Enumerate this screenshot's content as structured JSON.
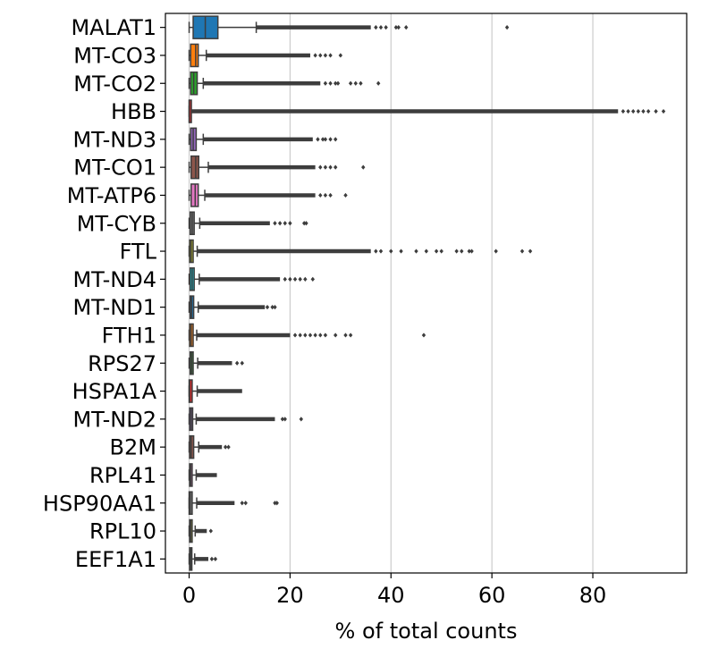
{
  "chart_data": {
    "type": "boxplot",
    "orientation": "horizontal",
    "title": "",
    "xlabel": "% of total counts",
    "ylabel": "",
    "xlim": [
      -4.7,
      98.6
    ],
    "xticks": [
      0,
      20,
      40,
      60,
      80
    ],
    "grid": "vertical",
    "colors": {
      "palette": [
        "#1f77b4",
        "#ff7f0e",
        "#2ca02c",
        "#d62728",
        "#9467bd",
        "#8c564b",
        "#e377c2",
        "#7f7f7f",
        "#bcbd22",
        "#17becf"
      ],
      "line": "#3d3d3d",
      "grid": "#cccccc"
    },
    "categories": [
      "MALAT1",
      "MT-CO3",
      "MT-CO2",
      "HBB",
      "MT-ND3",
      "MT-CO1",
      "MT-ATP6",
      "MT-CYB",
      "FTL",
      "MT-ND4",
      "MT-ND1",
      "FTH1",
      "RPS27",
      "HSPA1A",
      "MT-ND2",
      "B2M",
      "RPL41",
      "HSP90AA1",
      "RPL10",
      "EEF1A1"
    ],
    "boxes": [
      {
        "name": "MALAT1",
        "q1": 0.8,
        "median": 3.2,
        "q3": 5.7,
        "whisker_low": 0.0,
        "whisker_high": 13.3,
        "outlier_dense_to": 36.0,
        "outliers": [
          37,
          38,
          39,
          41,
          41.5,
          43,
          63
        ]
      },
      {
        "name": "MT-CO3",
        "q1": 0.3,
        "median": 1.3,
        "q3": 1.8,
        "whisker_low": 0.0,
        "whisker_high": 3.4,
        "outlier_dense_to": 24.0,
        "outliers": [
          25,
          26,
          27,
          28,
          30
        ]
      },
      {
        "name": "MT-CO2",
        "q1": 0.3,
        "median": 0.9,
        "q3": 1.6,
        "whisker_low": 0.0,
        "whisker_high": 2.8,
        "outlier_dense_to": 26.0,
        "outliers": [
          27,
          28,
          29,
          29.5,
          32,
          33,
          34,
          37.5
        ]
      },
      {
        "name": "HBB",
        "q1": 0.0,
        "median": 0.02,
        "q3": 0.05,
        "whisker_low": 0.0,
        "whisker_high": 0.1,
        "outlier_dense_to": 85.0,
        "outliers": [
          86,
          87,
          88,
          89,
          90,
          91,
          92.5,
          94
        ]
      },
      {
        "name": "MT-ND3",
        "q1": 0.3,
        "median": 0.8,
        "q3": 1.4,
        "whisker_low": 0.0,
        "whisker_high": 2.8,
        "outlier_dense_to": 24.5,
        "outliers": [
          25.5,
          26.5,
          27,
          28,
          29
        ]
      },
      {
        "name": "MT-CO1",
        "q1": 0.4,
        "median": 1.3,
        "q3": 1.9,
        "whisker_low": 0.0,
        "whisker_high": 3.8,
        "outlier_dense_to": 25.0,
        "outliers": [
          26,
          27,
          28,
          29,
          34.5
        ]
      },
      {
        "name": "MT-ATP6",
        "q1": 0.4,
        "median": 1.2,
        "q3": 1.8,
        "whisker_low": 0.0,
        "whisker_high": 3.1,
        "outlier_dense_to": 25.0,
        "outliers": [
          26,
          27,
          28,
          31
        ]
      },
      {
        "name": "MT-CYB",
        "q1": 0.2,
        "median": 0.6,
        "q3": 1.0,
        "whisker_low": 0.0,
        "whisker_high": 2.1,
        "outlier_dense_to": 16.0,
        "outliers": [
          17,
          18,
          19,
          20,
          22.8,
          23.2
        ]
      },
      {
        "name": "FTL",
        "q1": 0.1,
        "median": 0.4,
        "q3": 0.8,
        "whisker_low": 0.0,
        "whisker_high": 1.6,
        "outlier_dense_to": 36.0,
        "outliers": [
          37,
          38,
          40,
          42,
          45,
          47,
          49,
          50,
          53,
          54,
          55.5,
          56,
          60.8,
          66,
          67.6
        ]
      },
      {
        "name": "MT-ND4",
        "q1": 0.2,
        "median": 0.6,
        "q3": 1.0,
        "whisker_low": 0.0,
        "whisker_high": 2.0,
        "outlier_dense_to": 18.0,
        "outliers": [
          19,
          20,
          21,
          22,
          23,
          24.5
        ]
      },
      {
        "name": "MT-ND1",
        "q1": 0.2,
        "median": 0.5,
        "q3": 0.9,
        "whisker_low": 0.0,
        "whisker_high": 1.8,
        "outlier_dense_to": 15.0,
        "outliers": [
          15.5,
          16.5,
          17.0
        ]
      },
      {
        "name": "FTH1",
        "q1": 0.1,
        "median": 0.4,
        "q3": 0.8,
        "whisker_low": 0.0,
        "whisker_high": 1.5,
        "outlier_dense_to": 20.0,
        "outliers": [
          21,
          22,
          23,
          24,
          25,
          26,
          27,
          29,
          31,
          32,
          46.5
        ]
      },
      {
        "name": "RPS27",
        "q1": 0.2,
        "median": 0.5,
        "q3": 0.8,
        "whisker_low": 0.0,
        "whisker_high": 1.7,
        "outlier_dense_to": 8.5,
        "outliers": [
          9.5,
          10.5
        ]
      },
      {
        "name": "HSPA1A",
        "q1": 0.0,
        "median": 0.1,
        "q3": 0.6,
        "whisker_low": 0.0,
        "whisker_high": 1.6,
        "outlier_dense_to": 10.5,
        "outliers": []
      },
      {
        "name": "MT-ND2",
        "q1": 0.1,
        "median": 0.4,
        "q3": 0.7,
        "whisker_low": 0.0,
        "whisker_high": 1.4,
        "outlier_dense_to": 17.0,
        "outliers": [
          18.5,
          19.0,
          22.2
        ]
      },
      {
        "name": "B2M",
        "q1": 0.1,
        "median": 0.4,
        "q3": 0.9,
        "whisker_low": 0.0,
        "whisker_high": 1.9,
        "outlier_dense_to": 6.5,
        "outliers": [
          7.2,
          7.8
        ]
      },
      {
        "name": "RPL41",
        "q1": 0.1,
        "median": 0.3,
        "q3": 0.6,
        "whisker_low": 0.0,
        "whisker_high": 1.4,
        "outlier_dense_to": 5.5,
        "outliers": []
      },
      {
        "name": "HSP90AA1",
        "q1": 0.0,
        "median": 0.2,
        "q3": 0.6,
        "whisker_low": 0.0,
        "whisker_high": 1.5,
        "outlier_dense_to": 9.0,
        "outliers": [
          10.5,
          11.2,
          17.0,
          17.4
        ]
      },
      {
        "name": "RPL10",
        "q1": 0.1,
        "median": 0.3,
        "q3": 0.6,
        "whisker_low": 0.0,
        "whisker_high": 1.2,
        "outlier_dense_to": 3.5,
        "outliers": [
          4.3
        ]
      },
      {
        "name": "EEF1A1",
        "q1": 0.1,
        "median": 0.3,
        "q3": 0.5,
        "whisker_low": 0.0,
        "whisker_high": 1.1,
        "outlier_dense_to": 3.8,
        "outliers": [
          4.5,
          5.2
        ]
      }
    ]
  }
}
